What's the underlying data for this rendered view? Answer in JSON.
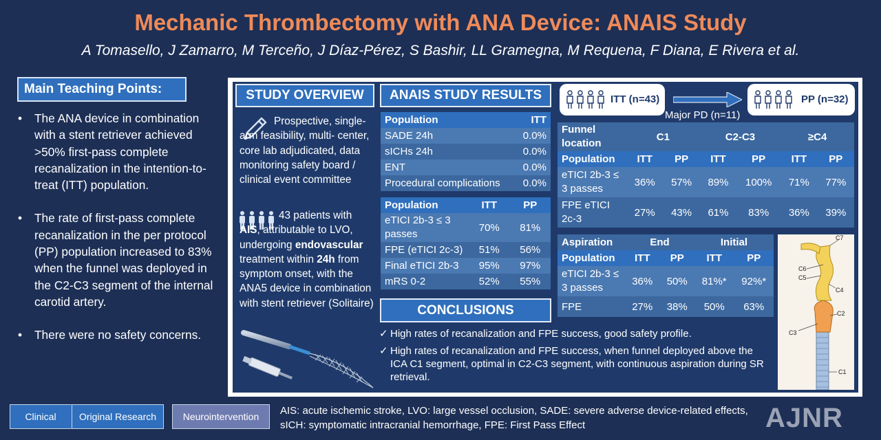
{
  "title": "Mechanic Thrombectomy with ANA Device: ANAIS Study",
  "authors": "A Tomasello, J Zamarro, M Terceño, J Díaz-Pérez, S Bashir, LL Gramegna, M Requena, F Diana, E Rivera et al.",
  "teaching": {
    "header": "Main Teaching Points:",
    "points": [
      "The ANA device in combination with a stent retriever achieved >50% first-pass complete recanalization in the intention-to-treat (ITT) population.",
      "The rate of first-pass complete recanalization in the per protocol (PP) population increased to 83% when the funnel was deployed in the C2-C3 segment of the internal carotid artery.",
      "There were no safety concerns."
    ]
  },
  "overview": {
    "header": "STUDY OVERVIEW",
    "design": "Prospective, single-arm feasibility, multi- center, core lab adjudicated, data monitoring safety board / clinical event committee",
    "patients_pre": "43 patients with",
    "patients_b1": "AIS",
    "patients_mid1": ", attributable to LVO, undergoing",
    "patients_b2": "endovascular",
    "patients_mid2": " treatment within",
    "patients_b3": "24h",
    "patients_post": " from symptom onset, with the ANA5 device in combination with stent retriever (Solitaire)"
  },
  "results": {
    "header": "ANAIS STUDY RESULTS",
    "safety": {
      "cols": [
        "Population",
        "ITT"
      ],
      "rows": [
        [
          "SADE 24h",
          "0.0%"
        ],
        [
          "sICHs 24h",
          "0.0%"
        ],
        [
          "ENT",
          "0.0%"
        ],
        [
          "Procedural complications",
          "0.0%"
        ]
      ]
    },
    "efficacy": {
      "cols": [
        "Population",
        "ITT",
        "PP"
      ],
      "rows": [
        [
          "eTICI 2b-3 ≤ 3 passes",
          "70%",
          "81%"
        ],
        [
          "FPE (eTICI 2c-3)",
          "51%",
          "56%"
        ],
        [
          "Final eTICI 2b-3",
          "95%",
          "97%"
        ],
        [
          "mRS 0-2",
          "52%",
          "55%"
        ]
      ]
    }
  },
  "flow": {
    "itt": "ITT (n=43)",
    "pp": "PP (n=32)",
    "arrow_label": "Major PD (n=11)"
  },
  "funnel": {
    "group_label": "Funnel location",
    "groups": [
      "C1",
      "C2-C3",
      "≥C4"
    ],
    "subcols": [
      "Population",
      "ITT",
      "PP",
      "ITT",
      "PP",
      "ITT",
      "PP"
    ],
    "rows": [
      [
        "eTICI 2b-3 ≤ 3 passes",
        "36%",
        "57%",
        "89%",
        "100%",
        "71%",
        "77%"
      ],
      [
        "FPE eTICI 2c-3",
        "27%",
        "43%",
        "61%",
        "83%",
        "36%",
        "39%"
      ]
    ]
  },
  "aspiration": {
    "group_label": "Aspiration",
    "groups": [
      "End",
      "Initial"
    ],
    "subcols": [
      "Population",
      "ITT",
      "PP",
      "ITT",
      "PP"
    ],
    "rows": [
      [
        "eTICI 2b-3 ≤ 3 passes",
        "36%",
        "50%",
        "81%*",
        "92%*"
      ],
      [
        "FPE",
        "27%",
        "38%",
        "50%",
        "63%"
      ]
    ]
  },
  "anatomy_labels": [
    "C7",
    "C6",
    "C5",
    "C4",
    "C3",
    "C2",
    "C1"
  ],
  "conclusions": {
    "header": "CONCLUSIONS",
    "items": [
      "High rates of recanalization and FPE success, good safety profile.",
      "High rates of recanalization and FPE success, when funnel deployed above the ICA C1 segment, optimal in C2-C3 segment, with continuous aspiration during SR retrieval."
    ]
  },
  "footer": {
    "tags": [
      "Clinical",
      "Original Research",
      "Neurointervention"
    ],
    "abbrev": "AIS: acute ischemic stroke, LVO: large vessel occlusion, SADE: severe adverse device-related effects, sICH: symptomatic intracranial hemorrhage, FPE: First Pass Effect",
    "logo": "AJNR"
  },
  "colors": {
    "background": "#1d2f55",
    "title": "#ef8a58",
    "header_blue": "#2f6fbd",
    "cell_blue": "#4b79b2"
  }
}
